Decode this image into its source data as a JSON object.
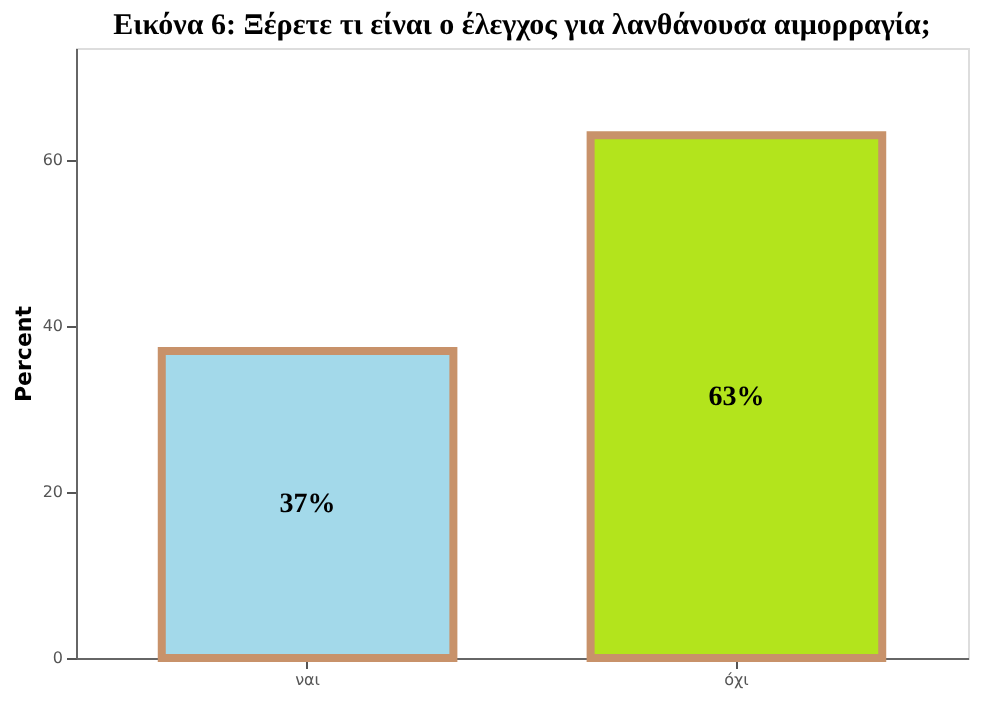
{
  "chart_data": {
    "type": "bar",
    "title": "Εικόνα 6: Ξέρετε τι είναι ο έλεγχος για λανθάνουσα αιμορραγία;",
    "ylabel": "Percent",
    "categories": [
      "ναι",
      "όχι"
    ],
    "values": [
      37,
      63
    ],
    "colors": [
      "#a3d9ea",
      "#b3e41c"
    ],
    "value_labels": [
      "37%",
      "63%"
    ],
    "ylim": [
      0,
      73.5
    ],
    "yticks": [
      0,
      20,
      40,
      60
    ],
    "grid": false
  }
}
